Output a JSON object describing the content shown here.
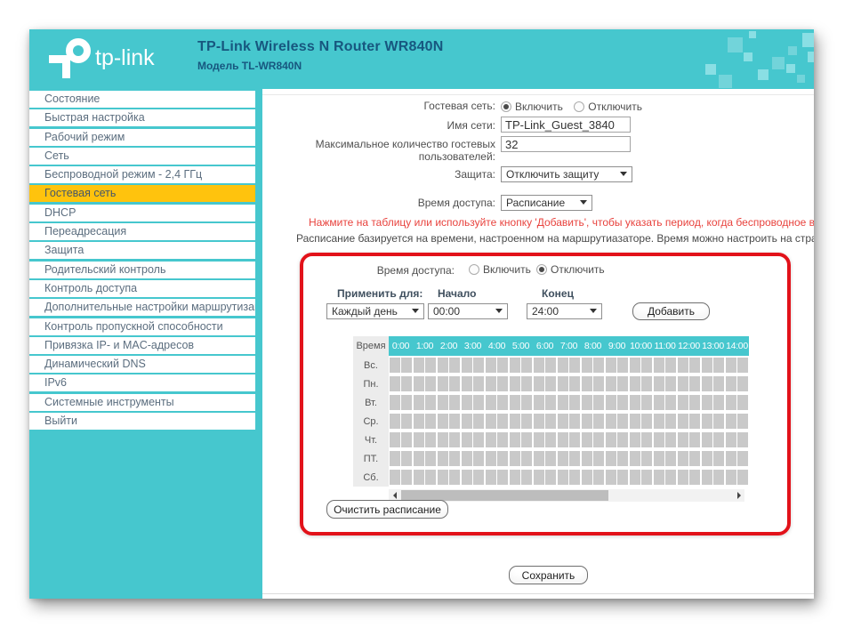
{
  "header": {
    "logo_text": "tp-link",
    "title": "TP-Link Wireless N Router WR840N",
    "subtitle": "Модель TL-WR840N"
  },
  "sidebar": {
    "items": [
      {
        "label": "Состояние",
        "active": false
      },
      {
        "label": "Быстрая настройка",
        "active": false
      },
      {
        "label": "Рабочий режим",
        "active": false
      },
      {
        "label": "Сеть",
        "active": false
      },
      {
        "label": "Беспроводной режим - 2,4 ГГц",
        "active": false
      },
      {
        "label": "Гостевая сеть",
        "active": true
      },
      {
        "label": "DHCP",
        "active": false
      },
      {
        "label": "Переадресация",
        "active": false
      },
      {
        "label": "Защита",
        "active": false
      },
      {
        "label": "Родительский контроль",
        "active": false
      },
      {
        "label": "Контроль доступа",
        "active": false
      },
      {
        "label": "Дополнительные настройки маршрутизации",
        "active": false
      },
      {
        "label": "Контроль пропускной способности",
        "active": false
      },
      {
        "label": "Привязка IP- и MAC-адресов",
        "active": false
      },
      {
        "label": "Динамический DNS",
        "active": false
      },
      {
        "label": "IPv6",
        "active": false
      },
      {
        "label": "Системные инструменты",
        "active": false
      },
      {
        "label": "Выйти",
        "active": false
      }
    ]
  },
  "form": {
    "guest_network_label": "Гостевая сеть:",
    "guest_network_on": "Включить",
    "guest_network_off": "Отключить",
    "network_name_label": "Имя сети:",
    "network_name_value": "TP-Link_Guest_3840",
    "max_guests_label_line1": "Максимальное количество гостевых",
    "max_guests_label_line2": "пользователей:",
    "max_guests_value": "32",
    "security_label": "Защита:",
    "security_value": "Отключить защиту",
    "access_time_label": "Время доступа:",
    "access_time_value": "Расписание"
  },
  "hints": {
    "red": "Нажмите на таблицу или используйте кнопку 'Добавить', чтобы указать период, когда беспроводное вещание будет о",
    "gray": "Расписание базируется на времени, настроенном на маршрутиазаторе. Время можно настроить на странице \"Системные и"
  },
  "schedule": {
    "access_time_label": "Время доступа:",
    "radio_on": "Включить",
    "radio_off": "Отключить",
    "apply_label": "Применить для:",
    "start_label": "Начало",
    "end_label": "Конец",
    "apply_value": "Каждый день",
    "start_value": "00:00",
    "end_value": "24:00",
    "add_button": "Добавить",
    "clear_button": "Очистить расписание",
    "table": {
      "time_header": "Время",
      "hours": [
        "0:00",
        "1:00",
        "2:00",
        "3:00",
        "4:00",
        "5:00",
        "6:00",
        "7:00",
        "8:00",
        "9:00",
        "10:00",
        "11:00",
        "12:00",
        "13:00",
        "14:00"
      ],
      "days": [
        "Вс.",
        "Пн.",
        "Вт.",
        "Ср.",
        "Чт.",
        "ПТ.",
        "Сб."
      ]
    }
  },
  "footer": {
    "save_button": "Сохранить"
  },
  "colors": {
    "teal": "#46c7ce",
    "teal_light": "#8adfe4",
    "accent_yellow": "#ffc30d",
    "highlight_red": "#e2121a",
    "hint_red": "#e8433e",
    "title_navy": "#17577f"
  }
}
